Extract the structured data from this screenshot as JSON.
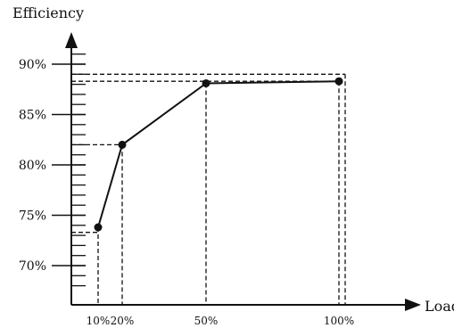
{
  "chart_data": {
    "type": "line",
    "title": "",
    "xlabel": "Load",
    "ylabel": "Efficiency",
    "x_ticks": [
      "10%",
      "20%",
      "50%",
      "100%"
    ],
    "y_ticks": [
      "70%",
      "75%",
      "80%",
      "85%",
      "90%"
    ],
    "ylim": [
      67,
      94
    ],
    "grid": false,
    "legend": "none",
    "series": [
      {
        "points": [
          {
            "x": "10%",
            "y": 73.8
          },
          {
            "x": "20%",
            "y": 82.0
          },
          {
            "x": "50%",
            "y": 88.1
          },
          {
            "x": "100%",
            "y": 88.3
          }
        ]
      }
    ],
    "reference_levels": [
      73.3,
      82.0,
      88.3,
      89.0
    ],
    "colors": {
      "line": "#111111",
      "axis": "#111111",
      "guide": "#111111"
    }
  }
}
